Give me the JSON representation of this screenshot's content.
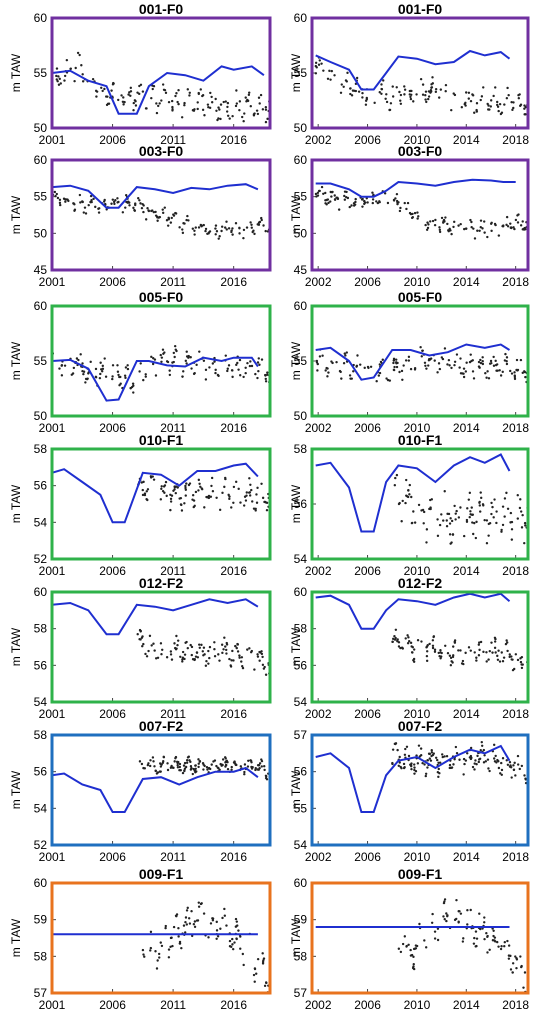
{
  "colors": {
    "purple": "#7030a0",
    "green": "#2fb24a",
    "blue": "#1f6fbf",
    "orange": "#e8731e",
    "line": "#1f2fd0",
    "points": "#222222"
  },
  "chart_data": [
    {
      "type": "scatter",
      "title": "001-F0",
      "ylabel": "m TAW",
      "frame_color": "purple",
      "xlim": [
        2001,
        2019
      ],
      "ylim": [
        50,
        60
      ],
      "xticks": [
        2001,
        2006,
        2011,
        2016
      ],
      "yticks": [
        50,
        55,
        60
      ],
      "line": {
        "x": [
          2001,
          2002.5,
          2004,
          2005.5,
          2006.5,
          2008,
          2009,
          2010.5,
          2012,
          2013.5,
          2015,
          2016,
          2017.5,
          2018.5
        ],
        "y": [
          55.0,
          55.2,
          54.3,
          53.8,
          51.3,
          51.3,
          53.8,
          55.0,
          54.8,
          54.3,
          55.6,
          55.3,
          55.6,
          54.8
        ]
      },
      "points": {
        "x_range": [
          2001,
          2019
        ],
        "center": [
          54.5,
          55.5,
          53.0,
          53.0,
          52.5,
          52.5,
          52.0,
          52.0,
          52.0
        ],
        "spread": 1.8,
        "n": 160,
        "seed": 11
      }
    },
    {
      "type": "scatter",
      "title": "001-F0",
      "ylabel": "m TAW",
      "frame_color": "purple",
      "xlim": [
        2001.5,
        2019
      ],
      "ylim": [
        50,
        60
      ],
      "xticks": [
        2002,
        2006,
        2010,
        2014,
        2018
      ],
      "yticks": [
        50,
        55,
        60
      ],
      "line": {
        "x": [
          2001.8,
          2003,
          2004.5,
          2005.5,
          2006.5,
          2007.5,
          2008.5,
          2010,
          2011.5,
          2013,
          2014.3,
          2015.5,
          2016.8,
          2017.5
        ],
        "y": [
          56.6,
          56.0,
          55.3,
          53.5,
          53.5,
          55.0,
          56.5,
          56.3,
          55.8,
          56.0,
          57.0,
          56.6,
          56.9,
          56.3
        ]
      },
      "points": {
        "x_range": [
          2001.8,
          2019
        ],
        "center": [
          56.0,
          54.0,
          53.0,
          53.0,
          53.5,
          53.0,
          52.5,
          52.5,
          52.0
        ],
        "spread": 1.6,
        "n": 150,
        "seed": 12
      }
    },
    {
      "type": "scatter",
      "title": "003-F0",
      "ylabel": "m TAW",
      "frame_color": "purple",
      "xlim": [
        2001,
        2019
      ],
      "ylim": [
        45,
        60
      ],
      "xticks": [
        2001,
        2006,
        2011,
        2016
      ],
      "yticks": [
        45,
        50,
        55,
        60
      ],
      "line": {
        "x": [
          2001,
          2002.5,
          2004,
          2005.5,
          2006.5,
          2008,
          2009.5,
          2011,
          2012.5,
          2014,
          2015.5,
          2017,
          2018
        ],
        "y": [
          56.3,
          56.5,
          55.8,
          53.5,
          53.5,
          56.3,
          56.0,
          55.5,
          56.2,
          56.0,
          56.5,
          56.7,
          56.0
        ]
      },
      "points": {
        "x_range": [
          2001,
          2019
        ],
        "center": [
          55.0,
          54.0,
          54.0,
          54.0,
          52.5,
          51.0,
          50.5,
          50.5,
          51.0
        ],
        "spread": 1.6,
        "n": 170,
        "seed": 21
      }
    },
    {
      "type": "scatter",
      "title": "003-F0",
      "ylabel": "m TAW",
      "frame_color": "purple",
      "xlim": [
        2001.5,
        2019
      ],
      "ylim": [
        45,
        60
      ],
      "xticks": [
        2002,
        2006,
        2010,
        2014,
        2018
      ],
      "yticks": [
        45,
        50,
        55,
        60
      ],
      "line": {
        "x": [
          2001.8,
          2003,
          2004.5,
          2005.5,
          2006.5,
          2007.5,
          2008.5,
          2010,
          2011.5,
          2013,
          2014.5,
          2016,
          2017,
          2018
        ],
        "y": [
          56.8,
          56.8,
          56.0,
          55.0,
          55.0,
          55.8,
          57.0,
          56.8,
          56.5,
          57.0,
          57.3,
          57.2,
          57.0,
          57.0
        ]
      },
      "points": {
        "x_range": [
          2001.8,
          2019
        ],
        "center": [
          55.5,
          54.5,
          54.5,
          54.5,
          52.0,
          51.0,
          50.5,
          51.0,
          51.5
        ],
        "spread": 1.6,
        "n": 160,
        "seed": 22
      }
    },
    {
      "type": "scatter",
      "title": "005-F0",
      "ylabel": "m TAW",
      "frame_color": "green",
      "xlim": [
        2001,
        2019
      ],
      "ylim": [
        50,
        60
      ],
      "xticks": [
        2001,
        2006,
        2011,
        2016
      ],
      "yticks": [
        50,
        55,
        60
      ],
      "line": {
        "x": [
          2001,
          2002.5,
          2004,
          2005.5,
          2006.5,
          2008,
          2009,
          2010.5,
          2012,
          2013.5,
          2015,
          2016,
          2017.5,
          2018
        ],
        "y": [
          55.0,
          55.1,
          54.3,
          51.4,
          51.5,
          55.0,
          55.0,
          54.6,
          54.5,
          55.3,
          55.0,
          55.3,
          55.3,
          54.5
        ]
      },
      "points": {
        "x_range": [
          2001,
          2019
        ],
        "center": [
          55.0,
          54.5,
          54.0,
          53.0,
          55.0,
          55.0,
          54.5,
          54.5,
          54.0
        ],
        "spread": 1.6,
        "n": 160,
        "seed": 31
      }
    },
    {
      "type": "scatter",
      "title": "005-F0",
      "ylabel": "m TAW",
      "frame_color": "green",
      "xlim": [
        2001.5,
        2019
      ],
      "ylim": [
        50,
        60
      ],
      "xticks": [
        2002,
        2006,
        2010,
        2014,
        2018
      ],
      "yticks": [
        50,
        55,
        60
      ],
      "line": {
        "x": [
          2001.8,
          2003,
          2004.5,
          2005.5,
          2006.5,
          2008,
          2009.5,
          2011,
          2012.5,
          2014,
          2015.5,
          2016.8,
          2017.5
        ],
        "y": [
          56.0,
          56.2,
          55.0,
          53.3,
          53.5,
          56.0,
          56.0,
          55.5,
          55.8,
          56.5,
          56.2,
          56.5,
          56.0
        ]
      },
      "points": {
        "x_range": [
          2001.8,
          2019
        ],
        "center": [
          55.0,
          54.5,
          54.5,
          54.0,
          55.5,
          55.0,
          54.5,
          54.5,
          54.0
        ],
        "spread": 1.5,
        "n": 160,
        "seed": 32
      }
    },
    {
      "type": "scatter",
      "title": "010-F1",
      "ylabel": "m TAW",
      "frame_color": "green",
      "xlim": [
        2001,
        2019
      ],
      "ylim": [
        52,
        58
      ],
      "xticks": [
        2001,
        2006,
        2011,
        2016
      ],
      "yticks": [
        52,
        54,
        56,
        58
      ],
      "line": {
        "x": [
          2001,
          2002,
          2003.5,
          2005,
          2006,
          2007,
          2008.5,
          2010,
          2011.5,
          2013,
          2014.5,
          2016,
          2017,
          2018
        ],
        "y": [
          56.7,
          56.9,
          56.2,
          55.5,
          54.0,
          54.0,
          56.7,
          56.6,
          56.0,
          56.8,
          56.8,
          57.1,
          57.2,
          56.5
        ]
      },
      "points": {
        "x_range": [
          2008,
          2019
        ],
        "center": [
          56.0,
          55.8,
          55.5,
          55.5,
          55.5,
          55.5,
          55.5,
          55.5,
          55.5
        ],
        "spread": 1.1,
        "n": 120,
        "seed": 41
      }
    },
    {
      "type": "scatter",
      "title": "010-F1",
      "ylabel": "m TAW",
      "frame_color": "green",
      "xlim": [
        2001.5,
        2019
      ],
      "ylim": [
        54,
        58
      ],
      "xticks": [
        2002,
        2006,
        2010,
        2014,
        2018
      ],
      "yticks": [
        54,
        56,
        58
      ],
      "line": {
        "x": [
          2001.8,
          2003,
          2004.5,
          2005.5,
          2006.5,
          2007.5,
          2008.5,
          2010,
          2011.5,
          2013,
          2014.3,
          2015.5,
          2016.8,
          2017.5
        ],
        "y": [
          57.4,
          57.5,
          56.6,
          55.0,
          55.0,
          56.8,
          57.4,
          57.3,
          56.8,
          57.4,
          57.7,
          57.5,
          57.8,
          57.2
        ]
      },
      "points": {
        "x_range": [
          2008,
          2019
        ],
        "center": [
          56.5,
          56.0,
          55.5,
          55.5,
          55.5,
          55.5,
          55.5,
          55.5,
          55.5
        ],
        "spread": 1.1,
        "n": 120,
        "seed": 42
      }
    },
    {
      "type": "scatter",
      "title": "012-F2",
      "ylabel": "m TAW",
      "frame_color": "green",
      "xlim": [
        2001,
        2019
      ],
      "ylim": [
        54,
        60
      ],
      "xticks": [
        2001,
        2006,
        2011,
        2016
      ],
      "yticks": [
        54,
        56,
        58,
        60
      ],
      "line": {
        "x": [
          2001,
          2002.5,
          2004,
          2005.5,
          2006.5,
          2008,
          2009.5,
          2011,
          2012.5,
          2014,
          2015.5,
          2017,
          2018
        ],
        "y": [
          59.3,
          59.4,
          59.0,
          57.7,
          57.7,
          59.3,
          59.2,
          59.0,
          59.3,
          59.6,
          59.4,
          59.6,
          59.2
        ]
      },
      "points": {
        "x_range": [
          2008,
          2019
        ],
        "center": [
          57.3,
          57.0,
          56.8,
          56.8,
          56.7,
          56.7,
          56.7,
          56.5,
          56.0
        ],
        "spread": 0.9,
        "n": 120,
        "seed": 51
      }
    },
    {
      "type": "scatter",
      "title": "012-F2",
      "ylabel": "m TAW",
      "frame_color": "green",
      "xlim": [
        2001.5,
        2019
      ],
      "ylim": [
        54,
        60
      ],
      "xticks": [
        2002,
        2006,
        2010,
        2014,
        2018
      ],
      "yticks": [
        54,
        56,
        58,
        60
      ],
      "line": {
        "x": [
          2001.8,
          2003,
          2004.5,
          2005.5,
          2006.5,
          2007.5,
          2008.5,
          2010,
          2011.5,
          2013,
          2014.3,
          2015.5,
          2016.8,
          2017.5
        ],
        "y": [
          59.7,
          59.8,
          59.3,
          58.0,
          58.0,
          59.0,
          59.6,
          59.5,
          59.3,
          59.7,
          59.9,
          59.7,
          59.9,
          59.5
        ]
      },
      "points": {
        "x_range": [
          2008,
          2019
        ],
        "center": [
          57.4,
          57.0,
          57.0,
          56.8,
          56.8,
          56.8,
          56.8,
          56.5,
          56.0
        ],
        "spread": 0.9,
        "n": 120,
        "seed": 52
      }
    },
    {
      "type": "scatter",
      "title": "007-F2",
      "ylabel": "m TAW",
      "frame_color": "blue",
      "xlim": [
        2001,
        2019
      ],
      "ylim": [
        52,
        58
      ],
      "xticks": [
        2001,
        2006,
        2011,
        2016
      ],
      "yticks": [
        52,
        54,
        56,
        58
      ],
      "line": {
        "x": [
          2001,
          2002,
          2003.5,
          2005,
          2006,
          2007,
          2008.5,
          2010,
          2011.5,
          2013,
          2014.5,
          2016,
          2017,
          2018
        ],
        "y": [
          55.8,
          55.9,
          55.3,
          55.0,
          53.8,
          53.8,
          55.6,
          55.7,
          55.3,
          55.7,
          56.0,
          56.0,
          56.2,
          55.7
        ]
      },
      "points": {
        "x_range": [
          2008,
          2019
        ],
        "center": [
          56.5,
          56.3,
          56.3,
          56.3,
          56.3,
          56.3,
          56.3,
          56.3,
          56.0
        ],
        "spread": 0.6,
        "n": 150,
        "seed": 61
      }
    },
    {
      "type": "scatter",
      "title": "007-F2",
      "ylabel": "m TAW",
      "frame_color": "blue",
      "xlim": [
        2001.5,
        2019
      ],
      "ylim": [
        54,
        57
      ],
      "xticks": [
        2002,
        2006,
        2010,
        2014,
        2018
      ],
      "yticks": [
        54,
        55,
        56,
        57
      ],
      "line": {
        "x": [
          2001.8,
          2003,
          2004.5,
          2005.5,
          2006.5,
          2007.5,
          2008.5,
          2010,
          2011.5,
          2013,
          2014.3,
          2015.5,
          2016.8,
          2017.5
        ],
        "y": [
          56.4,
          56.5,
          56.1,
          54.9,
          54.9,
          55.9,
          56.3,
          56.4,
          56.1,
          56.4,
          56.6,
          56.5,
          56.7,
          56.3
        ]
      },
      "points": {
        "x_range": [
          2008,
          2019
        ],
        "center": [
          56.4,
          56.3,
          56.3,
          56.3,
          56.3,
          56.4,
          56.3,
          56.2,
          56.0
        ],
        "spread": 0.5,
        "n": 150,
        "seed": 62
      }
    },
    {
      "type": "scatter",
      "title": "009-F1",
      "ylabel": "m TAW",
      "frame_color": "orange",
      "xlim": [
        2001,
        2019
      ],
      "ylim": [
        57,
        60
      ],
      "xticks": [
        2001,
        2006,
        2011,
        2016
      ],
      "yticks": [
        57,
        58,
        59,
        60
      ],
      "line": {
        "x": [
          2001,
          2018
        ],
        "y": [
          58.6,
          58.6
        ]
      },
      "points": {
        "x_range": [
          2008.5,
          2019
        ],
        "center": [
          58.3,
          58.2,
          58.6,
          59.0,
          59.0,
          58.8,
          58.4,
          57.9,
          57.5
        ],
        "spread": 0.7,
        "n": 110,
        "seed": 71
      }
    },
    {
      "type": "scatter",
      "title": "009-F1",
      "ylabel": "m TAW",
      "frame_color": "orange",
      "xlim": [
        2001.5,
        2019
      ],
      "ylim": [
        57,
        60
      ],
      "xticks": [
        2002,
        2006,
        2010,
        2014,
        2018
      ],
      "yticks": [
        57,
        58,
        59,
        60
      ],
      "line": {
        "x": [
          2001.8,
          2017.5
        ],
        "y": [
          58.8,
          58.8
        ]
      },
      "points": {
        "x_range": [
          2008.5,
          2019
        ],
        "center": [
          58.3,
          58.2,
          58.6,
          59.0,
          59.0,
          58.8,
          58.4,
          57.9,
          57.5
        ],
        "spread": 0.7,
        "n": 110,
        "seed": 72
      }
    }
  ]
}
